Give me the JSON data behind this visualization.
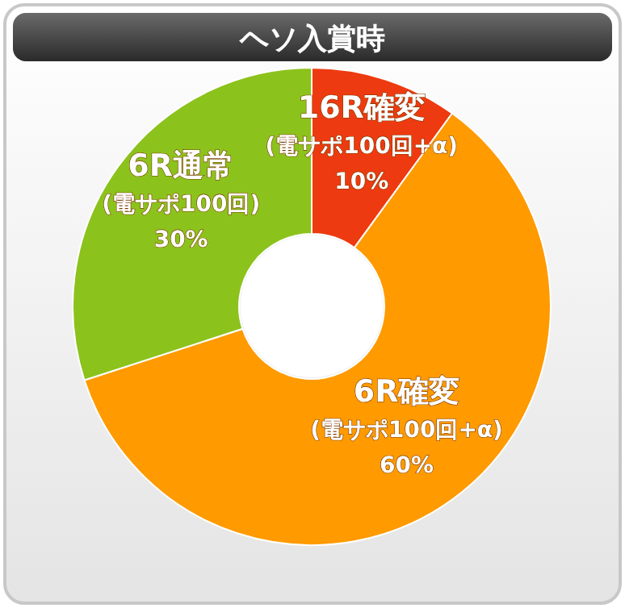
{
  "chart_data": {
    "type": "donut",
    "title": "ヘソ入賞時",
    "categories": [
      "16R確変 (電サポ100回+α)",
      "6R確変 (電サポ100回+α)",
      "6R通常 (電サポ100回)"
    ],
    "values": [
      10,
      60,
      30
    ],
    "colors": [
      "#ee3a10",
      "#ff9a00",
      "#8cc21c"
    ],
    "value_labels": [
      "10%",
      "60%",
      "30%"
    ]
  }
}
